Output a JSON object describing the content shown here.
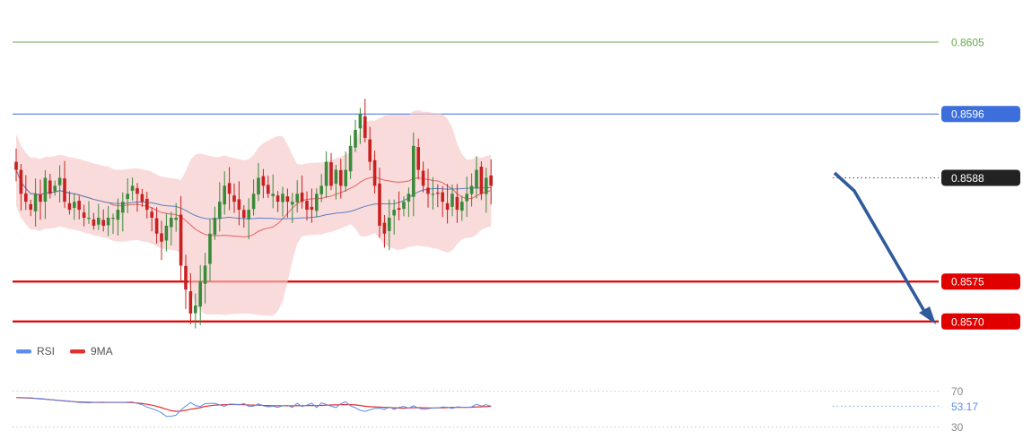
{
  "chart_data": {
    "type": "candlestick",
    "y_range": [
      0.8568,
      0.8608
    ],
    "levels": [
      {
        "value": 0.8605,
        "label": "0.8605",
        "color": "#6aa84f",
        "style": "thin",
        "tag": "text"
      },
      {
        "value": 0.8596,
        "label": "0.8596",
        "color": "#3d6fdc",
        "style": "thin",
        "tag": "box"
      },
      {
        "value": 0.8588,
        "label": "0.8588",
        "color": "#222222",
        "style": "dotted",
        "tag": "box"
      },
      {
        "value": 0.8575,
        "label": "0.8575",
        "color": "#e00000",
        "style": "thick",
        "tag": "box"
      },
      {
        "value": 0.857,
        "label": "0.8570",
        "color": "#e00000",
        "style": "thick",
        "tag": "box"
      }
    ],
    "bollinger": {
      "band_color": "#f6c8c8",
      "middle_color": "#e85f5f",
      "ma_color": "#5b7fbf"
    },
    "candles": {
      "up_color": "#3a8a3a",
      "down_color": "#c92020",
      "closes": [
        0.8589,
        0.8586,
        0.8585,
        0.8584,
        0.8586,
        0.8585,
        0.8588,
        0.8586,
        0.8587,
        0.8588,
        0.8585,
        0.8584,
        0.8585,
        0.8584,
        0.8583,
        0.8583,
        0.8582,
        0.8583,
        0.8582,
        0.8583,
        0.8583,
        0.8584,
        0.8585,
        0.8586,
        0.8587,
        0.8586,
        0.8585,
        0.8584,
        0.8583,
        0.8581,
        0.858,
        0.8582,
        0.8583,
        0.8583,
        0.8577,
        0.8574,
        0.8571,
        0.8572,
        0.8575,
        0.8577,
        0.8581,
        0.8583,
        0.8585,
        0.8587,
        0.8586,
        0.8585,
        0.8584,
        0.8583,
        0.8584,
        0.8586,
        0.8588,
        0.8587,
        0.8586,
        0.8586,
        0.8585,
        0.8586,
        0.8585,
        0.8585,
        0.8586,
        0.8585,
        0.8584,
        0.8584,
        0.8586,
        0.8587,
        0.859,
        0.8587,
        0.8589,
        0.8587,
        0.8589,
        0.8592,
        0.8594,
        0.8596,
        0.8593,
        0.859,
        0.8587,
        0.8582,
        0.8581,
        0.8583,
        0.8584,
        0.8584,
        0.8585,
        0.8586,
        0.8592,
        0.8589,
        0.8587,
        0.8586,
        0.8586,
        0.8586,
        0.8585,
        0.8584,
        0.8586,
        0.8584,
        0.8585,
        0.8586,
        0.8587,
        0.8589,
        0.8586,
        0.8588,
        0.8587
      ]
    },
    "indicator": {
      "legend": [
        {
          "name": "RSI",
          "color": "#5b8def"
        },
        {
          "name": "9MA",
          "color": "#e03030"
        }
      ],
      "levels": [
        {
          "value": 70,
          "label": "70"
        },
        {
          "value": 30,
          "label": "30"
        }
      ],
      "current_value": 53.17,
      "current_label": "53.17",
      "rsi_values": [
        63.0,
        62.8,
        62.6,
        62.5,
        62.0,
        61.7,
        61.1,
        60.6,
        59.9,
        59.6,
        59.2,
        58.8,
        58.0,
        57.4,
        57.1,
        56.9,
        57.4,
        57.6,
        57.8,
        57.4,
        57.5,
        57.6,
        57.4,
        57.8,
        57.8,
        56.2,
        54.8,
        52.2,
        50.4,
        48.6,
        45.8,
        41.8,
        42.0,
        43.1,
        49.0,
        53.4,
        57.3,
        53.9,
        52.8,
        56.0,
        56.2,
        56.4,
        54.6,
        53.0,
        55.6,
        55.3,
        54.7,
        56.2,
        52.9,
        53.2,
        55.8,
        53.6,
        52.4,
        53.1,
        51.9,
        53.6,
        54.1,
        51.7,
        56.5,
        52.7,
        54.4,
        56.5,
        51.7,
        56.8,
        55.2,
        53.1,
        51.6,
        56.0,
        58.1,
        53.6,
        51.4,
        48.5,
        47.4,
        49.1,
        50.6,
        51.0,
        49.5,
        52.3,
        49.6,
        51.8,
        53.0,
        50.9,
        53.7,
        51.1,
        49.8,
        50.4,
        51.1,
        51.1,
        52.3,
        52.0,
        50.5,
        52.5,
        52.0,
        51.9,
        52.4,
        55.3,
        53.3,
        54.8,
        53.2
      ],
      "ma_values": [
        62.9,
        62.6,
        62.4,
        62.1,
        61.8,
        61.4,
        61.0,
        60.5,
        60.0,
        59.5,
        59.0,
        58.6,
        58.2,
        57.9,
        57.7,
        57.5,
        57.4,
        57.4,
        57.4,
        57.4,
        57.4,
        57.4,
        57.4,
        57.3,
        57.1,
        56.7,
        56.1,
        55.3,
        54.3,
        53.1,
        51.5,
        49.8,
        48.1,
        47.5,
        47.7,
        48.6,
        49.8,
        50.6,
        51.5,
        52.9,
        53.7,
        54.3,
        54.6,
        54.8,
        55.0,
        55.1,
        55.0,
        54.8,
        54.5,
        54.4,
        54.3,
        54.0,
        53.9,
        53.7,
        53.7,
        53.7,
        53.6,
        53.5,
        53.8,
        53.7,
        53.8,
        53.9,
        53.8,
        54.0,
        54.3,
        54.5,
        54.6,
        54.8,
        55.0,
        54.9,
        54.6,
        53.9,
        53.1,
        52.6,
        52.4,
        52.2,
        51.9,
        51.7,
        51.4,
        51.1,
        51.0,
        51.2,
        51.5,
        51.5,
        51.4,
        51.3,
        51.2,
        51.3,
        51.4,
        51.6,
        51.8,
        51.9,
        51.9,
        51.9,
        52.0,
        52.3,
        52.5,
        52.7,
        53.0
      ]
    }
  }
}
